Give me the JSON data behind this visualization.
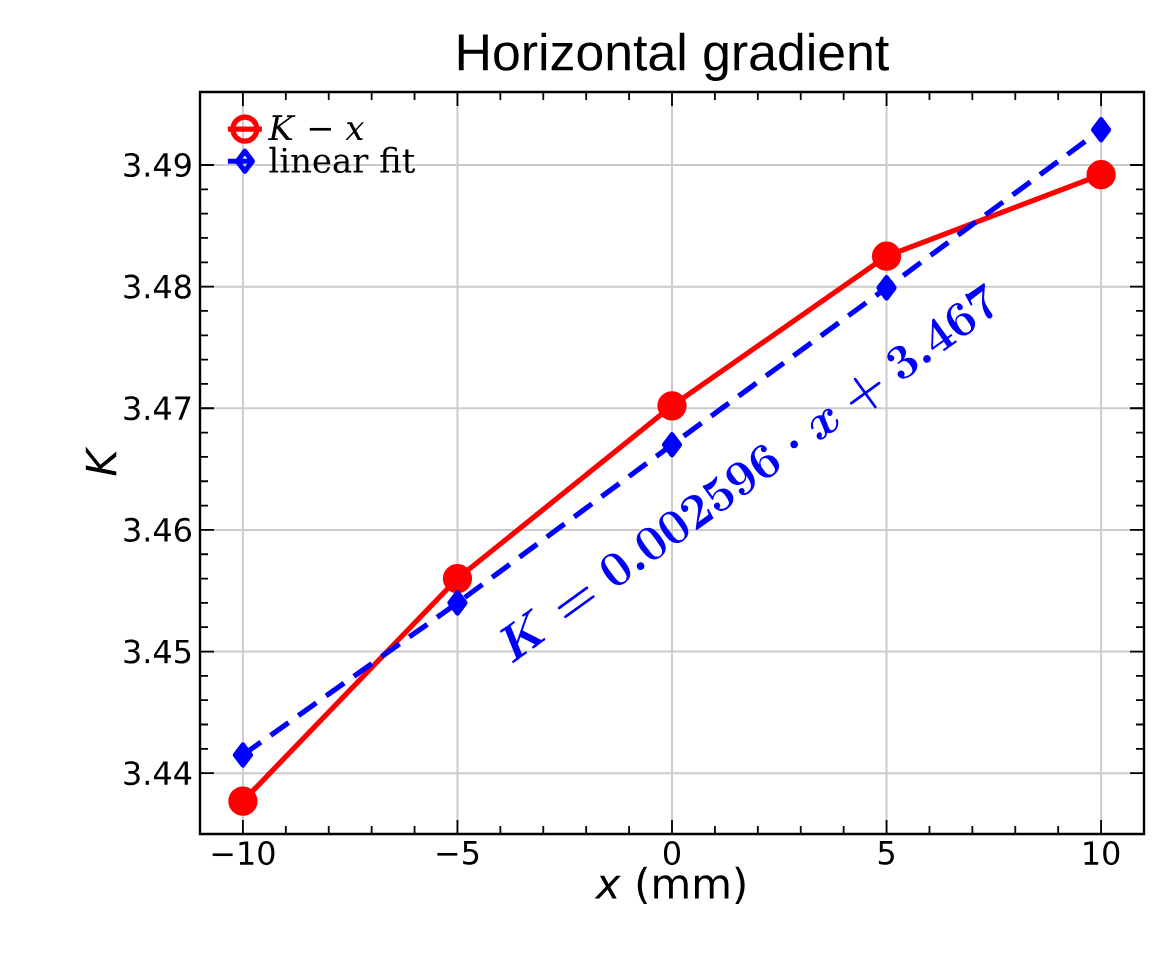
{
  "chart_data": {
    "type": "line",
    "title": "Horizontal gradient",
    "xlabel": "*x* (mm)",
    "ylabel": "K",
    "x": [
      -10,
      -5,
      0,
      5,
      10
    ],
    "series": [
      {
        "name": "*K* − *x*",
        "color": "#ff0000",
        "marker": "circle",
        "line_style": "solid",
        "values": [
          3.4377,
          3.456,
          3.4702,
          3.4825,
          3.4892
        ]
      },
      {
        "name": "linear fit",
        "color": "#0000ff",
        "marker": "diamond",
        "line_style": "dashed",
        "values": [
          3.4415,
          3.454,
          3.467,
          3.4799,
          3.4929
        ]
      }
    ],
    "xlim": [
      -11,
      11
    ],
    "ylim": [
      3.435,
      3.496
    ],
    "xticks": [
      {
        "value": -10,
        "label": "−10"
      },
      {
        "value": -5,
        "label": "−5"
      },
      0,
      5,
      10
    ],
    "yticks": [
      3.44,
      3.45,
      3.46,
      3.47,
      3.48,
      3.49
    ],
    "grid": true,
    "legend": "top left",
    "annotations": [
      "K = 0.002596 \\cdot x + 3.467"
    ]
  }
}
